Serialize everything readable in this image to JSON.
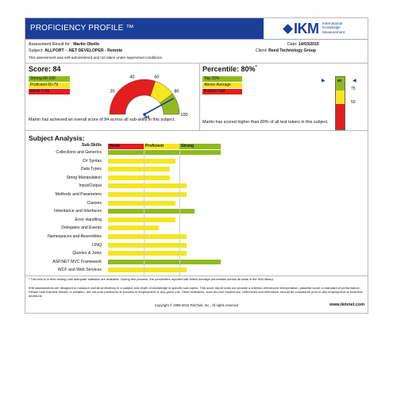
{
  "header": {
    "title": "PROFICIENCY PROFILE ™",
    "logo_text": "IKM",
    "logo_sub": [
      "International",
      "Knowledge",
      "Measurement"
    ]
  },
  "assessment": {
    "result_label": "Assessment Result for :",
    "candidate": "Martin Okello",
    "date_label": "Date:",
    "date": "14/03/2015",
    "subject_label": "Subject:",
    "subject": "ALLPORT - .NET DEVELOPER - Remote",
    "client_label": "Client:",
    "client": "Reed Technology Group",
    "note": "This assessment was self-administered and not taken under supervised conditions."
  },
  "score": {
    "title": "Score: 84",
    "value": 84,
    "legend": [
      {
        "label": "Strong 80-100",
        "color": "#8fba1e"
      },
      {
        "label": "Proficient 60-79",
        "color": "#f5e61f"
      },
      {
        "label": "Weak 1-59",
        "color": "#e31e1e"
      }
    ],
    "gauge_ticks": [
      "20",
      "40",
      "60",
      "80",
      "100"
    ],
    "gauge_value_label": "84",
    "summary": "Martin has achieved an overall score of 84 across all sub-skills in this subject."
  },
  "percentile": {
    "title": "Percentile: 80%",
    "asterisk": "*",
    "value": 80,
    "legend": [
      {
        "label": "Top 25%",
        "color": "#8fba1e"
      },
      {
        "label": "Above Average",
        "color": "#f5e61f"
      },
      {
        "label": "Bottom Half",
        "color": "#e31e1e"
      }
    ],
    "scale_labels": [
      "75",
      "50"
    ],
    "marker_label": "80",
    "summary": "Martin has scored higher than 80% of all test takers in this subject."
  },
  "analysis": {
    "title": "Subject Analysis:",
    "col_header": "Sub-Skills",
    "levels": [
      {
        "label": "Weak",
        "color": "#e31e1e"
      },
      {
        "label": "Proficient",
        "color": "#f5e61f"
      },
      {
        "label": "Strong",
        "color": "#8fba1e"
      }
    ],
    "skills": [
      {
        "name": "Collections and Generics",
        "score": 100,
        "level": "strong"
      },
      {
        "name": "C# Syntax",
        "score": 60,
        "level": "proficient"
      },
      {
        "name": "Data Types",
        "score": 55,
        "level": "proficient"
      },
      {
        "name": "String Manipulation",
        "score": 55,
        "level": "proficient"
      },
      {
        "name": "Input/Output",
        "score": 70,
        "level": "proficient"
      },
      {
        "name": "Methods and Parameters",
        "score": 70,
        "level": "proficient"
      },
      {
        "name": "Classes",
        "score": 60,
        "level": "proficient"
      },
      {
        "name": "Inheritance and Interfaces",
        "score": 77,
        "level": "strong"
      },
      {
        "name": "Error Handling",
        "score": 60,
        "level": "proficient"
      },
      {
        "name": "Delegates and Events",
        "score": 45,
        "level": "proficient"
      },
      {
        "name": "Namespaces and Assemblies",
        "score": 70,
        "level": "proficient"
      },
      {
        "name": "LINQ",
        "score": 70,
        "level": "proficient"
      },
      {
        "name": "Queries & Joins",
        "score": 70,
        "level": "proficient"
      },
      {
        "name": "ASP.NET MVC Framework",
        "score": 100,
        "level": "strong"
      },
      {
        "name": "WCF and Web Services",
        "score": 70,
        "level": "proficient"
      }
    ]
  },
  "footer": {
    "note1": "* This test is in field testing until adequate statistics are available. During this process, the percentiles reported will reflect average percentiles across all tests in the IKM library.",
    "note2": "IKM assessments are designed to measure overall proficiency in a subject and depth of knowledge in specific sub-topics. This score report does not provide a criterion-referenced interpretation, pass/fail score or standard of performance. Please note that test results, in isolation, are not pure predictors of success in employment or any given role. Other indicators, such as prior experience, references and interviews, should be considered prior to any employment or business decisions.",
    "copyright": "Copyright © 1999-2015 TekChek, Inc., All rights reserved",
    "url": "www.ikmnet.com"
  }
}
